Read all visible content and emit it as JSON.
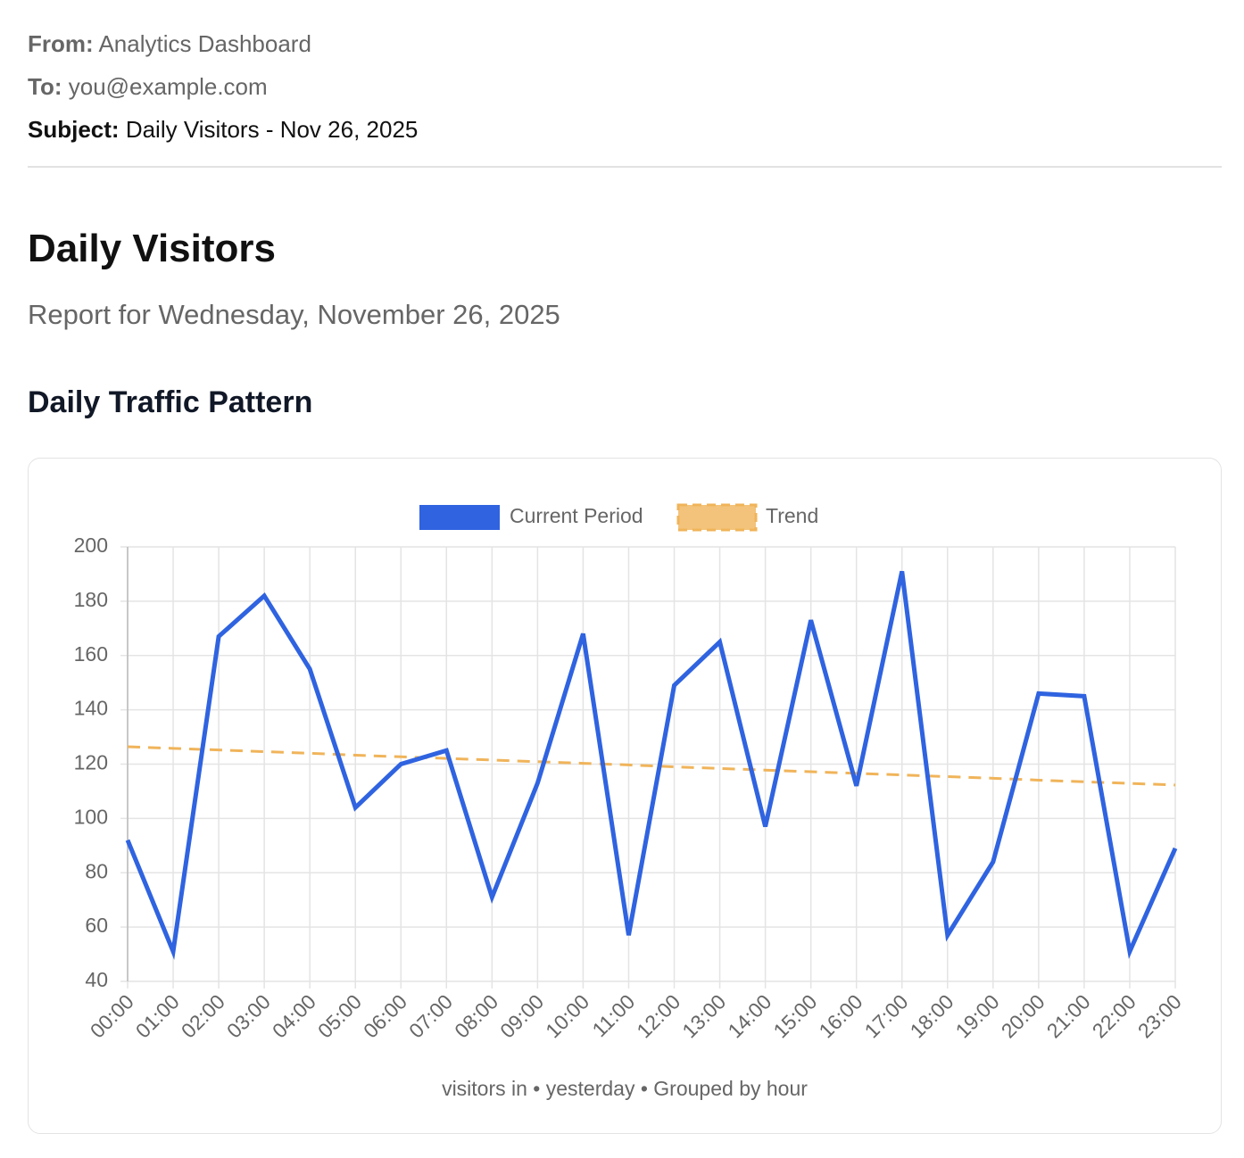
{
  "email": {
    "from_label": "From:",
    "from": "Analytics Dashboard",
    "to_label": "To:",
    "to": "you@example.com",
    "subject_label": "Subject:",
    "subject": "Daily Visitors - Nov 26, 2025"
  },
  "title": "Daily Visitors",
  "subtitle": "Report for Wednesday, November 26, 2025",
  "section_title": "Daily Traffic Pattern",
  "chart_data": {
    "type": "line",
    "categories": [
      "00:00",
      "01:00",
      "02:00",
      "03:00",
      "04:00",
      "05:00",
      "06:00",
      "07:00",
      "08:00",
      "09:00",
      "10:00",
      "11:00",
      "12:00",
      "13:00",
      "14:00",
      "15:00",
      "16:00",
      "17:00",
      "18:00",
      "19:00",
      "20:00",
      "21:00",
      "22:00",
      "23:00"
    ],
    "series": [
      {
        "name": "Current Period",
        "color": "#2f63e0",
        "dashed": false,
        "values": [
          92,
          51,
          167,
          182,
          155,
          104,
          120,
          125,
          71,
          113,
          168,
          57,
          149,
          165,
          97,
          173,
          112,
          191,
          57,
          84,
          146,
          145,
          51,
          89
        ]
      },
      {
        "name": "Trend",
        "color": "#f0b45a",
        "dashed": true,
        "values": [
          126.4,
          125.8,
          125.2,
          124.6,
          124.0,
          123.3,
          122.7,
          122.1,
          121.5,
          120.9,
          120.3,
          119.7,
          119.0,
          118.4,
          117.8,
          117.2,
          116.6,
          116.0,
          115.4,
          114.8,
          114.1,
          113.5,
          112.9,
          112.3
        ]
      }
    ],
    "ylim": [
      40,
      200
    ],
    "yticks": [
      40,
      60,
      80,
      100,
      120,
      140,
      160,
      180,
      200
    ],
    "grid": true,
    "legend": "top",
    "footer": "visitors in • yesterday • Grouped by hour"
  }
}
